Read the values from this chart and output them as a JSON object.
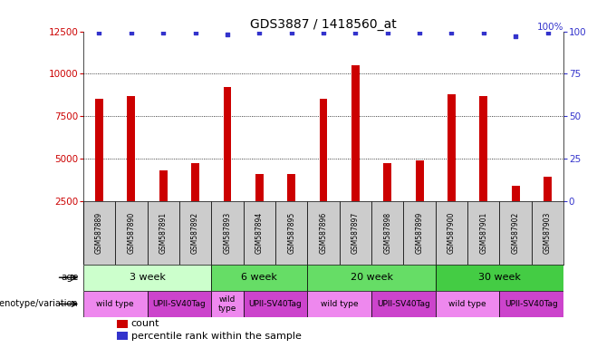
{
  "title": "GDS3887 / 1418560_at",
  "samples": [
    "GSM587889",
    "GSM587890",
    "GSM587891",
    "GSM587892",
    "GSM587893",
    "GSM587894",
    "GSM587895",
    "GSM587896",
    "GSM587897",
    "GSM587898",
    "GSM587899",
    "GSM587900",
    "GSM587901",
    "GSM587902",
    "GSM587903"
  ],
  "counts": [
    8500,
    8700,
    4300,
    4700,
    9200,
    4100,
    4100,
    8500,
    10500,
    4700,
    4900,
    8800,
    8700,
    3400,
    3900
  ],
  "percentile_ranks": [
    99,
    99,
    99,
    99,
    98,
    99,
    99,
    99,
    99,
    99,
    99,
    99,
    99,
    97,
    99
  ],
  "ylim_left": [
    2500,
    12500
  ],
  "ylim_right": [
    0,
    100
  ],
  "yticks_left": [
    2500,
    5000,
    7500,
    10000,
    12500
  ],
  "yticks_right": [
    0,
    25,
    50,
    75,
    100
  ],
  "bar_color": "#cc0000",
  "dot_color": "#3333cc",
  "age_groups": [
    {
      "label": "3 week",
      "start": 0,
      "end": 4,
      "color": "#ccffcc"
    },
    {
      "label": "6 week",
      "start": 4,
      "end": 7,
      "color": "#66dd66"
    },
    {
      "label": "20 week",
      "start": 7,
      "end": 11,
      "color": "#66dd66"
    },
    {
      "label": "30 week",
      "start": 11,
      "end": 15,
      "color": "#44cc44"
    }
  ],
  "genotype_groups": [
    {
      "label": "wild type",
      "start": 0,
      "end": 2,
      "color": "#ee88ee"
    },
    {
      "label": "UPII-SV40Tag",
      "start": 2,
      "end": 4,
      "color": "#cc44cc"
    },
    {
      "label": "wild\ntype",
      "start": 4,
      "end": 5,
      "color": "#ee88ee"
    },
    {
      "label": "UPII-SV40Tag",
      "start": 5,
      "end": 7,
      "color": "#cc44cc"
    },
    {
      "label": "wild type",
      "start": 7,
      "end": 9,
      "color": "#ee88ee"
    },
    {
      "label": "UPII-SV40Tag",
      "start": 9,
      "end": 11,
      "color": "#cc44cc"
    },
    {
      "label": "wild type",
      "start": 11,
      "end": 13,
      "color": "#ee88ee"
    },
    {
      "label": "UPII-SV40Tag",
      "start": 13,
      "end": 15,
      "color": "#cc44cc"
    }
  ],
  "row_label_age": "age",
  "row_label_genotype": "genotype/variation",
  "legend_count_label": "count",
  "legend_pct_label": "percentile rank within the sample",
  "tick_label_color_left": "#cc0000",
  "tick_label_color_right": "#3333cc",
  "grid_color": "#000000",
  "sample_header_color": "#cccccc"
}
